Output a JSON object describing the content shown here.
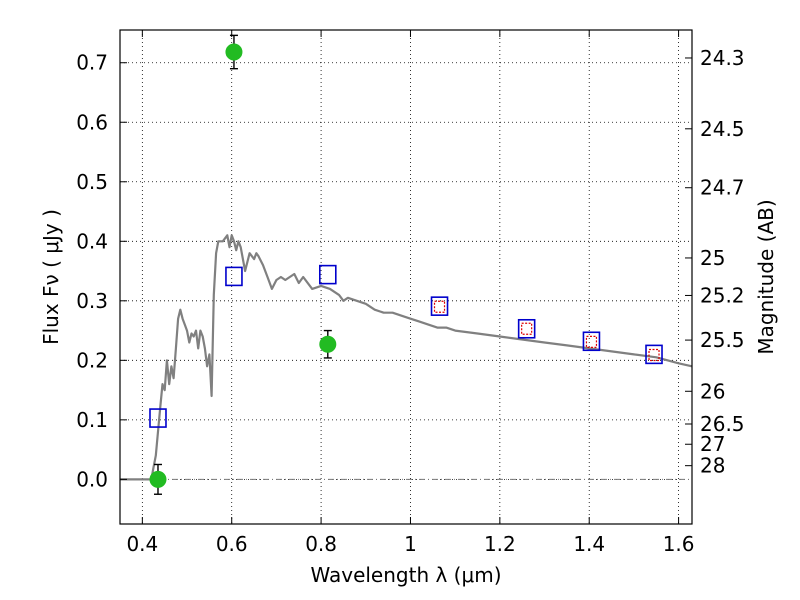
{
  "chart_data": {
    "type": "scatter",
    "xlabel": "Wavelength  λ (μm)",
    "ylabel": "Flux  Fν  ( μJy )",
    "ylabel2": "Magnitude (AB)",
    "xlim": [
      0.35,
      1.63
    ],
    "ylim": [
      -0.075,
      0.755
    ],
    "grid": true,
    "x_ticks": [
      0.4,
      0.6,
      0.8,
      1.0,
      1.2,
      1.4,
      1.6
    ],
    "x_tick_labels": [
      "0.4",
      "0.6",
      "0.8",
      "1",
      "1.2",
      "1.4",
      "1.6"
    ],
    "y_ticks": [
      0.0,
      0.1,
      0.2,
      0.3,
      0.4,
      0.5,
      0.6,
      0.7
    ],
    "y_tick_labels": [
      "0.0",
      "0.1",
      "0.2",
      "0.3",
      "0.4",
      "0.5",
      "0.6",
      "0.7"
    ],
    "mag_ticks": [
      {
        "label": "24.3",
        "flux": 0.708
      },
      {
        "label": "24.5",
        "flux": 0.589
      },
      {
        "label": "24.7",
        "flux": 0.49
      },
      {
        "label": "25",
        "flux": 0.372
      },
      {
        "label": "25.2",
        "flux": 0.309
      },
      {
        "label": "25.5",
        "flux": 0.234
      },
      {
        "label": "26",
        "flux": 0.148
      },
      {
        "label": "26.5",
        "flux": 0.093
      },
      {
        "label": "27",
        "flux": 0.059
      },
      {
        "label": "28",
        "flux": 0.023
      }
    ],
    "series": [
      {
        "role": "model spectrum",
        "style": "line",
        "color": "#808080",
        "x": [
          0.35,
          0.42,
          0.425,
          0.43,
          0.435,
          0.44,
          0.445,
          0.45,
          0.455,
          0.46,
          0.465,
          0.47,
          0.475,
          0.48,
          0.485,
          0.49,
          0.495,
          0.5,
          0.505,
          0.51,
          0.515,
          0.52,
          0.525,
          0.53,
          0.535,
          0.54,
          0.545,
          0.55,
          0.555,
          0.56,
          0.565,
          0.57,
          0.58,
          0.59,
          0.595,
          0.6,
          0.605,
          0.61,
          0.615,
          0.62,
          0.63,
          0.64,
          0.65,
          0.655,
          0.66,
          0.67,
          0.68,
          0.69,
          0.7,
          0.71,
          0.72,
          0.74,
          0.75,
          0.76,
          0.78,
          0.8,
          0.82,
          0.84,
          0.85,
          0.86,
          0.88,
          0.9,
          0.92,
          0.94,
          0.96,
          0.98,
          1.0,
          1.02,
          1.04,
          1.06,
          1.08,
          1.1,
          1.15,
          1.2,
          1.25,
          1.3,
          1.35,
          1.4,
          1.45,
          1.5,
          1.55,
          1.6,
          1.63
        ],
        "y": [
          0.0,
          0.0,
          0.02,
          0.04,
          0.08,
          0.12,
          0.16,
          0.15,
          0.2,
          0.16,
          0.19,
          0.17,
          0.22,
          0.27,
          0.285,
          0.27,
          0.26,
          0.25,
          0.23,
          0.245,
          0.24,
          0.25,
          0.22,
          0.25,
          0.24,
          0.22,
          0.19,
          0.21,
          0.14,
          0.31,
          0.38,
          0.4,
          0.4,
          0.41,
          0.39,
          0.41,
          0.4,
          0.385,
          0.4,
          0.39,
          0.35,
          0.38,
          0.37,
          0.38,
          0.375,
          0.36,
          0.34,
          0.32,
          0.335,
          0.34,
          0.335,
          0.345,
          0.33,
          0.34,
          0.32,
          0.325,
          0.32,
          0.31,
          0.3,
          0.305,
          0.3,
          0.295,
          0.285,
          0.28,
          0.28,
          0.275,
          0.27,
          0.265,
          0.26,
          0.255,
          0.255,
          0.25,
          0.245,
          0.24,
          0.235,
          0.23,
          0.225,
          0.22,
          0.215,
          0.21,
          0.205,
          0.195,
          0.19
        ]
      },
      {
        "role": "observed fluxes",
        "style": "circle",
        "color": "#22bb22",
        "x": [
          0.435,
          0.605,
          0.815
        ],
        "y": [
          0.0,
          0.718,
          0.227
        ],
        "yerr": [
          0.025,
          0.028,
          0.023
        ]
      },
      {
        "role": "model photometry",
        "style": "square-outline",
        "color": "#0000cc",
        "x": [
          0.435,
          0.605,
          0.815,
          1.065,
          1.26,
          1.405,
          1.545
        ],
        "y": [
          0.103,
          0.341,
          0.344,
          0.291,
          0.253,
          0.232,
          0.21
        ]
      },
      {
        "role": "predicted photometry",
        "style": "small-square-outline",
        "color": "#dd0000",
        "x": [
          1.065,
          1.26,
          1.405,
          1.545
        ],
        "y": [
          0.29,
          0.253,
          0.231,
          0.209
        ]
      }
    ],
    "reference_line": {
      "y": 0.0,
      "style": "dash-dot",
      "color": "#777777"
    }
  }
}
